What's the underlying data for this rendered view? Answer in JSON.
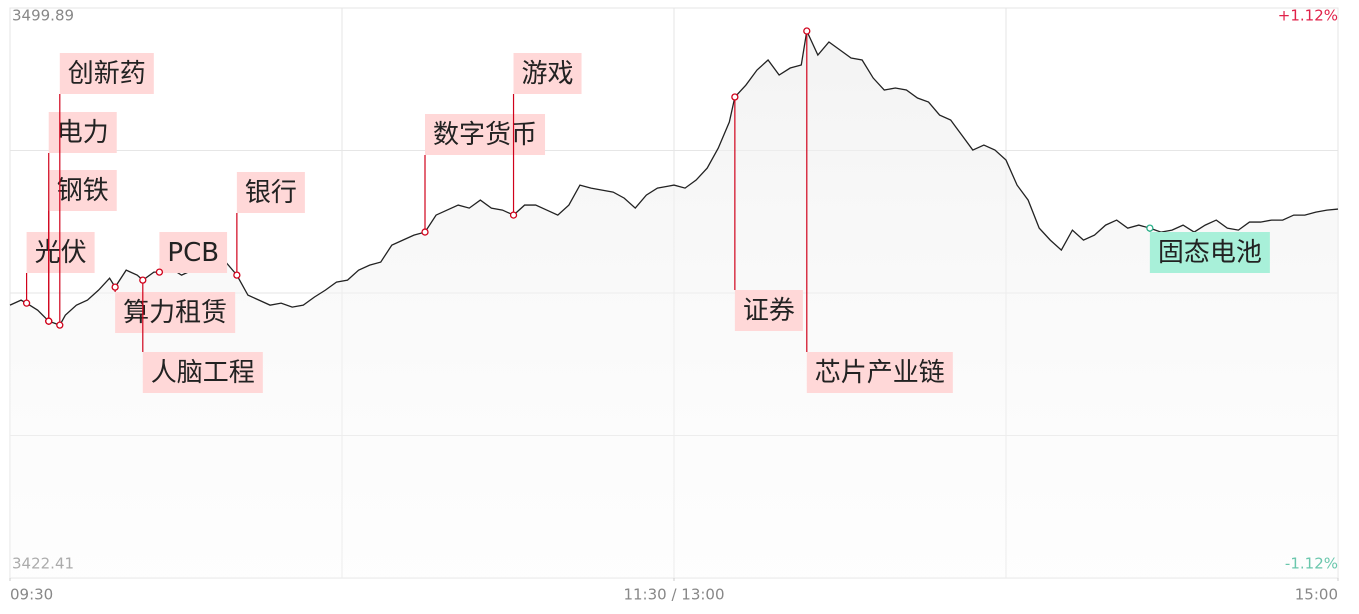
{
  "chart_data": {
    "type": "line",
    "x": [
      0,
      2,
      3,
      5,
      7,
      8,
      9,
      10,
      12,
      14,
      16,
      18,
      19,
      21,
      23,
      24,
      26,
      27,
      29,
      31,
      33,
      35,
      37,
      39,
      41,
      43,
      45,
      47,
      49,
      51,
      53,
      55,
      57,
      59,
      61,
      63,
      65,
      67,
      69,
      71,
      73,
      75,
      77,
      79,
      81,
      83,
      85,
      87,
      89,
      91,
      93,
      95,
      97,
      99,
      101,
      103,
      105,
      107,
      109,
      111,
      113,
      115,
      117,
      119,
      120,
      122,
      124,
      126,
      128,
      130,
      131,
      133,
      135,
      137,
      139,
      141,
      143,
      144,
      146,
      148,
      150,
      152,
      154,
      156,
      158,
      160,
      162,
      164,
      166,
      168,
      170,
      172,
      174,
      176,
      178,
      180,
      182,
      184,
      186,
      188,
      190,
      192,
      194,
      196,
      198,
      200,
      202,
      204,
      206,
      208,
      210,
      212,
      214,
      216,
      218,
      220,
      222,
      224,
      226,
      228,
      230,
      232,
      234,
      236,
      238,
      240
    ],
    "series": [
      {
        "color": "#222222",
        "values": [
          3459.5,
          3460.18,
          3459.77,
          3458.82,
          3457.32,
          3457.05,
          3456.78,
          3458.14,
          3459.5,
          3460.18,
          3461.54,
          3463.17,
          3461.95,
          3464.26,
          3463.58,
          3462.9,
          3463.99,
          3463.99,
          3464.53,
          3463.58,
          3464.26,
          3464.53,
          3464.26,
          3465.35,
          3463.58,
          3460.86,
          3460.18,
          3459.5,
          3459.77,
          3459.23,
          3459.5,
          3460.59,
          3461.54,
          3462.63,
          3462.9,
          3464.26,
          3464.94,
          3465.35,
          3467.66,
          3468.34,
          3469.02,
          3469.43,
          3471.74,
          3472.42,
          3473.1,
          3472.69,
          3473.78,
          3472.69,
          3472.42,
          3471.74,
          3473.1,
          3473.1,
          3472.42,
          3471.74,
          3473.1,
          3475.82,
          3475.41,
          3475.14,
          3474.87,
          3474.05,
          3472.69,
          3474.46,
          3475.41,
          3475.68,
          3475.82,
          3475.41,
          3476.5,
          3478.13,
          3480.85,
          3484.39,
          3487.79,
          3489.42,
          3491.46,
          3492.82,
          3490.78,
          3491.73,
          3492.14,
          3496.76,
          3493.5,
          3495.27,
          3494.18,
          3493.09,
          3492.82,
          3490.37,
          3488.74,
          3489.01,
          3488.74,
          3487.65,
          3487.11,
          3485.34,
          3484.66,
          3482.62,
          3480.58,
          3481.26,
          3480.58,
          3479.22,
          3475.82,
          3473.78,
          3469.97,
          3468.34,
          3466.98,
          3469.7,
          3468.34,
          3469.02,
          3470.38,
          3471.06,
          3469.97,
          3470.38,
          3469.97,
          3469.43,
          3469.7,
          3470.38,
          3469.43,
          3470.38,
          3471.06,
          3469.97,
          3469.7,
          3470.79,
          3470.79,
          3471.06,
          3471.06,
          3471.74,
          3471.74,
          3472.15,
          3472.42,
          3472.56
        ]
      }
    ],
    "xlim": [
      0,
      240
    ],
    "xticks": [
      {
        "value": 0,
        "label": "09:30"
      },
      {
        "value": 120,
        "label": "11:30 / 13:00"
      },
      {
        "value": 240,
        "label": "15:00"
      }
    ],
    "ylim": [
      3422.41,
      3499.89
    ],
    "yticks": [
      3499.89,
      3422.41
    ],
    "y2lim": [
      -1.12,
      1.12
    ],
    "y2ticks": [
      {
        "value": 1.12,
        "label": "+1.12%"
      },
      {
        "value": -1.12,
        "label": "-1.12%"
      }
    ],
    "grid": true,
    "annotations": [
      {
        "text": "光伏",
        "x": 3,
        "y": 3459.77,
        "color": "#d0021b"
      },
      {
        "text": "钢铁",
        "x": 7,
        "y": 3457.32,
        "color": "#d0021b"
      },
      {
        "text": "电力",
        "x": 7,
        "y": 3457.32,
        "color": "#d0021b"
      },
      {
        "text": "创新药",
        "x": 9,
        "y": 3456.78,
        "color": "#d0021b"
      },
      {
        "text": "算力租赁",
        "x": 19,
        "y": 3461.95,
        "color": "#d0021b"
      },
      {
        "text": "人脑工程",
        "x": 24,
        "y": 3462.9,
        "color": "#d0021b"
      },
      {
        "text": "PCB",
        "x": 27,
        "y": 3463.99,
        "color": "#d0021b"
      },
      {
        "text": "银行",
        "x": 41,
        "y": 3463.58,
        "color": "#d0021b"
      },
      {
        "text": "数字货币",
        "x": 75,
        "y": 3469.43,
        "color": "#d0021b"
      },
      {
        "text": "游戏",
        "x": 91,
        "y": 3471.74,
        "color": "#d0021b"
      },
      {
        "text": "证券",
        "x": 131,
        "y": 3487.79,
        "color": "#d0021b"
      },
      {
        "text": "芯片产业链",
        "x": 144,
        "y": 3496.76,
        "color": "#d0021b"
      },
      {
        "text": "固态电池",
        "x": 206,
        "y": 3469.97,
        "color": "#2ab08a"
      }
    ]
  }
}
